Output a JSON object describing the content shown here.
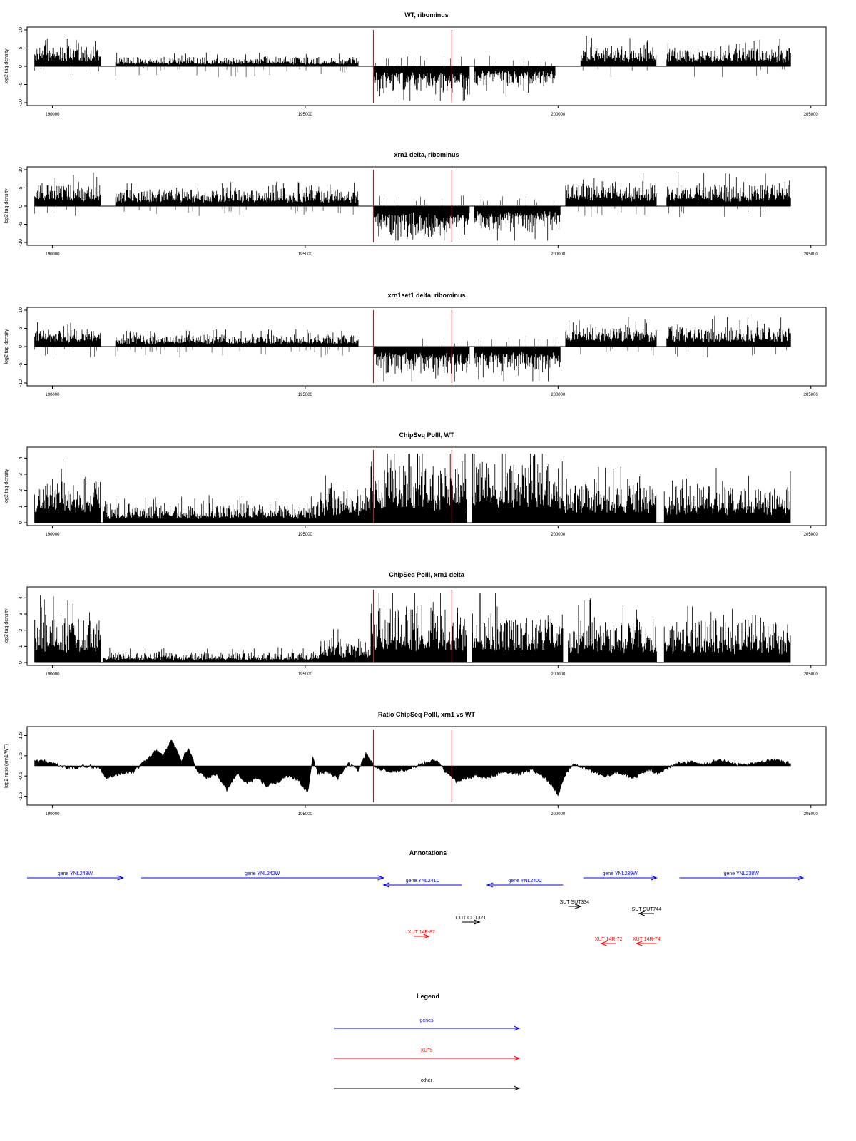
{
  "chart_data": [
    {
      "type": "bar",
      "title": "WT, ribominus",
      "ylabel": "log2 tag density",
      "xlim": [
        189500,
        205300
      ],
      "ylim": [
        -10,
        10
      ],
      "xticks": [
        190000,
        195000,
        200000,
        205000
      ],
      "yticks": [
        10,
        5,
        0,
        -5,
        -10
      ],
      "marker_lines": [
        196350,
        197900
      ],
      "marker_color": "#ff0000",
      "segments": [
        {
          "start": 189650,
          "end": 190950,
          "level": 4.5,
          "sign": 1
        },
        {
          "start": 191250,
          "end": 196050,
          "level": 2.0,
          "sign": 1
        },
        {
          "start": 196350,
          "end": 198250,
          "level": 6.0,
          "sign": -1
        },
        {
          "start": 198350,
          "end": 199950,
          "level": 4.5,
          "sign": -1
        },
        {
          "start": 200450,
          "end": 201950,
          "level": 4.5,
          "sign": 1
        },
        {
          "start": 202150,
          "end": 204600,
          "level": 4.0,
          "sign": 1
        }
      ]
    },
    {
      "type": "bar",
      "title": "xrn1 delta, ribominus",
      "ylabel": "log2 tag density",
      "xlim": [
        189500,
        205300
      ],
      "ylim": [
        -10,
        10
      ],
      "xticks": [
        190000,
        195000,
        200000,
        205000
      ],
      "yticks": [
        10,
        5,
        0,
        -5,
        -10
      ],
      "marker_lines": [
        196350,
        197900
      ],
      "marker_color": "#ff0000",
      "segments": [
        {
          "start": 189650,
          "end": 190950,
          "level": 5.0,
          "sign": 1
        },
        {
          "start": 191250,
          "end": 196050,
          "level": 3.5,
          "sign": 1
        },
        {
          "start": 196350,
          "end": 198250,
          "level": 6.5,
          "sign": -1
        },
        {
          "start": 198350,
          "end": 200050,
          "level": 5.5,
          "sign": -1
        },
        {
          "start": 200150,
          "end": 201950,
          "level": 5.0,
          "sign": 1
        },
        {
          "start": 202150,
          "end": 204600,
          "level": 5.0,
          "sign": 1
        }
      ]
    },
    {
      "type": "bar",
      "title": "xrn1set1 delta, ribominus",
      "ylabel": "log2 tag density",
      "xlim": [
        189500,
        205300
      ],
      "ylim": [
        -10,
        10
      ],
      "xticks": [
        190000,
        195000,
        200000,
        205000
      ],
      "yticks": [
        10,
        5,
        0,
        -5,
        -10
      ],
      "marker_lines": [
        196350,
        197900
      ],
      "marker_color": "#ff0000",
      "segments": [
        {
          "start": 189650,
          "end": 190950,
          "level": 4.0,
          "sign": 1
        },
        {
          "start": 191250,
          "end": 196050,
          "level": 2.5,
          "sign": 1
        },
        {
          "start": 196350,
          "end": 198250,
          "level": 6.0,
          "sign": -1
        },
        {
          "start": 198350,
          "end": 200050,
          "level": 5.5,
          "sign": -1
        },
        {
          "start": 200150,
          "end": 201950,
          "level": 4.5,
          "sign": 1
        },
        {
          "start": 202150,
          "end": 204600,
          "level": 4.5,
          "sign": 1
        }
      ]
    },
    {
      "type": "bar",
      "title": "ChipSeq PolII, WT",
      "ylabel": "log2 tag density",
      "xlim": [
        189500,
        205300
      ],
      "ylim": [
        0,
        4.5
      ],
      "xticks": [
        190000,
        195000,
        200000,
        205000
      ],
      "yticks": [
        4,
        3,
        2,
        1,
        0
      ],
      "marker_lines": [
        196350,
        197900
      ],
      "marker_color": "#ff0000",
      "segments": [
        {
          "start": 189650,
          "end": 190950,
          "level": 2.2,
          "sign": 1
        },
        {
          "start": 191000,
          "end": 195300,
          "level": 0.9,
          "sign": 1
        },
        {
          "start": 195300,
          "end": 196300,
          "level": 1.7,
          "sign": 1
        },
        {
          "start": 196300,
          "end": 198200,
          "level": 3.0,
          "sign": 1
        },
        {
          "start": 198300,
          "end": 200100,
          "level": 3.1,
          "sign": 1
        },
        {
          "start": 200100,
          "end": 201950,
          "level": 2.0,
          "sign": 1
        },
        {
          "start": 202100,
          "end": 204600,
          "level": 1.8,
          "sign": 1
        }
      ]
    },
    {
      "type": "bar",
      "title": "ChipSeq PolII, xrn1 delta",
      "ylabel": "log2 tag density",
      "xlim": [
        189500,
        205300
      ],
      "ylim": [
        0,
        4.5
      ],
      "xticks": [
        190000,
        195000,
        200000,
        205000
      ],
      "yticks": [
        4,
        3,
        2,
        1,
        0
      ],
      "marker_lines": [
        196350,
        197900
      ],
      "marker_color": "#ff0000",
      "segments": [
        {
          "start": 189650,
          "end": 190950,
          "level": 2.2,
          "sign": 1
        },
        {
          "start": 191000,
          "end": 195300,
          "level": 0.5,
          "sign": 1
        },
        {
          "start": 195300,
          "end": 196300,
          "level": 1.2,
          "sign": 1
        },
        {
          "start": 196300,
          "end": 198200,
          "level": 2.8,
          "sign": 1
        },
        {
          "start": 198300,
          "end": 200100,
          "level": 2.4,
          "sign": 1
        },
        {
          "start": 200200,
          "end": 201950,
          "level": 2.1,
          "sign": 1
        },
        {
          "start": 202100,
          "end": 204600,
          "level": 2.0,
          "sign": 1
        }
      ]
    },
    {
      "type": "area",
      "title": "Ratio ChipSeq PolII, xrn1 vs WT",
      "ylabel": "log2 ratio (xrn1/WT)",
      "xlim": [
        189500,
        205300
      ],
      "ylim": [
        -1.8,
        1.8
      ],
      "xticks": [
        190000,
        195000,
        200000,
        205000
      ],
      "yticks": [
        1.5,
        0.5,
        -0.5,
        -1.5
      ],
      "marker_lines": [
        196350,
        197900
      ],
      "marker_color": "#ff0000",
      "x": [
        189650,
        189900,
        190150,
        190400,
        190650,
        190950,
        191050,
        191300,
        191600,
        191900,
        192050,
        192200,
        192350,
        192550,
        192700,
        192850,
        193050,
        193250,
        193450,
        193650,
        193850,
        194050,
        194250,
        194450,
        194650,
        194850,
        195050,
        195150,
        195250,
        195450,
        195650,
        195850,
        196050,
        196200,
        196400,
        196700,
        197000,
        197300,
        197600,
        197800,
        198000,
        198200,
        198400,
        198600,
        198900,
        199200,
        199500,
        199800,
        200000,
        200150,
        200300,
        200600,
        200900,
        201200,
        201500,
        201800,
        202000,
        202300,
        202600,
        202900,
        203200,
        203500,
        203800,
        204100,
        204300,
        204600
      ],
      "y": [
        0.3,
        0.2,
        0.0,
        -0.1,
        0.0,
        -0.1,
        -0.6,
        -0.4,
        -0.3,
        0.4,
        0.8,
        0.5,
        1.3,
        0.3,
        0.9,
        -0.2,
        -0.6,
        -0.4,
        -1.2,
        -0.4,
        -0.8,
        -0.6,
        -1.0,
        -0.8,
        -0.5,
        -0.7,
        -1.3,
        0.4,
        -0.4,
        -0.3,
        -0.6,
        0.1,
        -0.2,
        0.6,
        -0.1,
        -0.3,
        -0.2,
        0.1,
        0.3,
        -0.4,
        -0.8,
        -0.6,
        -0.5,
        -0.6,
        -0.3,
        -0.4,
        -0.2,
        -0.7,
        -1.4,
        -0.4,
        0.1,
        -0.2,
        -0.5,
        -0.3,
        -0.6,
        -0.2,
        -0.4,
        0.1,
        0.2,
        0.1,
        0.3,
        0.1,
        0.1,
        0.2,
        0.3,
        0.1
      ]
    }
  ],
  "annotations": {
    "title": "Annotations",
    "xlim": [
      189500,
      205300
    ],
    "features": [
      {
        "label": "gene YNL243W",
        "start": 189500,
        "end": 191400,
        "strand": "+",
        "color": "#0000ff",
        "row": 0
      },
      {
        "label": "gene YNL242W",
        "start": 191750,
        "end": 196550,
        "strand": "+",
        "color": "#0000ff",
        "row": 0
      },
      {
        "label": "gene YNL241C",
        "start": 196550,
        "end": 198100,
        "strand": "-",
        "color": "#0000ff",
        "row": 1
      },
      {
        "label": "gene YNL240C",
        "start": 198600,
        "end": 200100,
        "strand": "-",
        "color": "#0000ff",
        "row": 1
      },
      {
        "label": "gene YNL239W",
        "start": 200500,
        "end": 201950,
        "strand": "+",
        "color": "#0000ff",
        "row": 0
      },
      {
        "label": "gene YNL238W",
        "start": 202400,
        "end": 204850,
        "strand": "+",
        "color": "#0000ff",
        "row": 0
      },
      {
        "label": "SUT SUT334",
        "start": 200200,
        "end": 200450,
        "strand": "+",
        "color": "#000000",
        "row": 2
      },
      {
        "label": "SUT SUT744",
        "start": 201600,
        "end": 201900,
        "strand": "-",
        "color": "#000000",
        "row": 3
      },
      {
        "label": "CUT CUT321",
        "start": 198100,
        "end": 198450,
        "strand": "+",
        "color": "#000000",
        "row": 4
      },
      {
        "label": "XUT 14F-87",
        "start": 197150,
        "end": 197450,
        "strand": "+",
        "color": "#ff0000",
        "row": 5
      },
      {
        "label": "XUT 14R-72",
        "start": 200850,
        "end": 201150,
        "strand": "-",
        "color": "#ff0000",
        "row": 6
      },
      {
        "label": "XUT 14R-74",
        "start": 201550,
        "end": 201950,
        "strand": "-",
        "color": "#ff0000",
        "row": 6
      }
    ]
  },
  "legend": {
    "title": "Legend",
    "items": [
      {
        "label": "genes",
        "color": "#0000ff"
      },
      {
        "label": "XUTs",
        "color": "#ff0000"
      },
      {
        "label": "other",
        "color": "#000000"
      }
    ]
  }
}
